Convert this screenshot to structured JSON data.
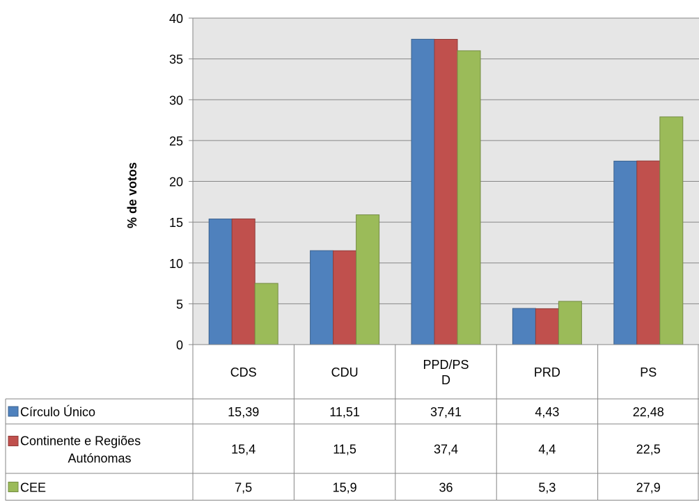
{
  "chart_data": {
    "type": "bar",
    "title": "",
    "xlabel": "",
    "ylabel": "% de votos",
    "ylim": [
      0,
      40
    ],
    "yticks": [
      0,
      5,
      10,
      15,
      20,
      25,
      30,
      35,
      40
    ],
    "grid": true,
    "legend": "data-table",
    "categories": [
      "CDS",
      "CDU",
      "PPD/PSD",
      "PRD",
      "PS"
    ],
    "category_display": [
      [
        "CDS"
      ],
      [
        "CDU"
      ],
      [
        "PPD/PS",
        "D"
      ],
      [
        "PRD"
      ],
      [
        "PS"
      ]
    ],
    "series": [
      {
        "name": "Círculo Único",
        "name_lines": [
          "Círculo Único"
        ],
        "color": "#4F81BD",
        "values": [
          15.39,
          11.51,
          37.41,
          4.43,
          22.48
        ],
        "labels": [
          "15,39",
          "11,51",
          "37,41",
          "4,43",
          "22,48"
        ]
      },
      {
        "name": "Continente e Regiões Autónomas",
        "name_lines": [
          "Continente e Regiões",
          "Autónomas"
        ],
        "color": "#C0504D",
        "values": [
          15.4,
          11.5,
          37.4,
          4.4,
          22.5
        ],
        "labels": [
          "15,4",
          "11,5",
          "37,4",
          "4,4",
          "22,5"
        ]
      },
      {
        "name": "CEE",
        "name_lines": [
          "CEE"
        ],
        "color": "#9BBB59",
        "values": [
          7.5,
          15.9,
          36,
          5.3,
          27.9
        ],
        "labels": [
          "7,5",
          "15,9",
          "36",
          "5,3",
          "27,9"
        ]
      }
    ],
    "plot_background": "#E6E6E6"
  }
}
